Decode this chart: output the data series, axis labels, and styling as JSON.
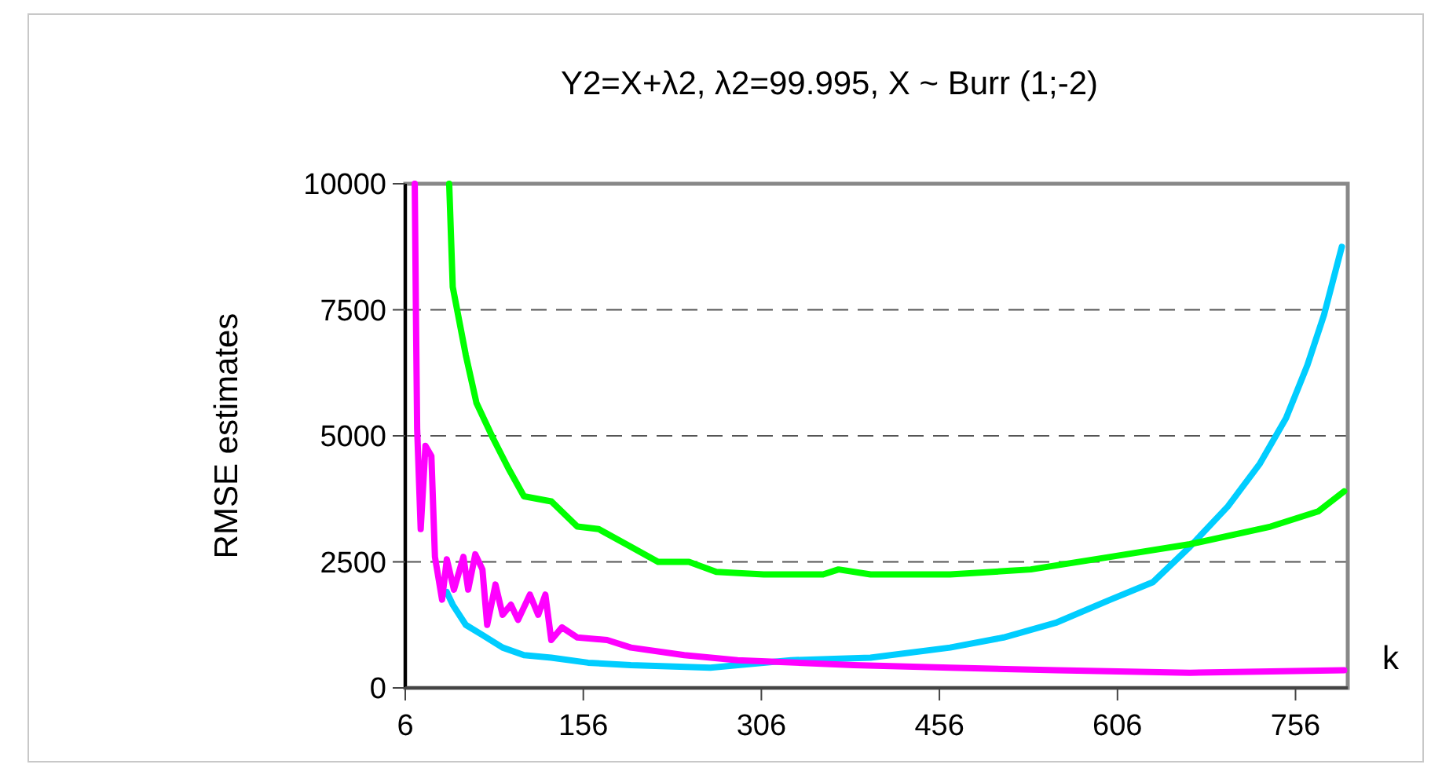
{
  "chart_data": {
    "type": "line",
    "title": "Y2=X+λ2,  λ2=99.995,  X ~ Burr (1;-2)",
    "xlabel": "k",
    "ylabel": "RMSE estimates",
    "xlim": [
      6,
      800
    ],
    "xticks": [
      6,
      156,
      306,
      456,
      606,
      756
    ],
    "ylim": [
      0,
      10000
    ],
    "yticks": [
      0,
      2500,
      5000,
      7500,
      10000
    ],
    "grid": "y",
    "line_style": "solid",
    "series": [
      {
        "color": "#00cdff",
        "x": [
          41,
          46,
          57,
          71,
          88,
          106,
          129,
          160,
          196,
          263,
          331,
          398,
          465,
          510,
          555,
          600,
          636,
          667,
          699,
          726,
          748,
          766,
          780,
          795
        ],
        "values": [
          1900,
          1650,
          1250,
          1050,
          800,
          650,
          600,
          500,
          450,
          400,
          550,
          600,
          800,
          1000,
          1300,
          1750,
          2100,
          2800,
          3600,
          4450,
          5350,
          6400,
          7400,
          8750
        ]
      },
      {
        "color": "#00ff00",
        "x": [
          43,
          46,
          57,
          66,
          80,
          93,
          106,
          129,
          151,
          169,
          196,
          219,
          245,
          268,
          308,
          358,
          371,
          398,
          465,
          533,
          600,
          667,
          735,
          775,
          797
        ],
        "values": [
          10000,
          7950,
          6600,
          5650,
          4950,
          4350,
          3800,
          3700,
          3200,
          3150,
          2800,
          2500,
          2500,
          2300,
          2250,
          2250,
          2350,
          2250,
          2250,
          2350,
          2600,
          2850,
          3200,
          3500,
          3900
        ]
      },
      {
        "color": "#ff00ff",
        "x": [
          14,
          15,
          16,
          19,
          23,
          28,
          31,
          37,
          41,
          47,
          55,
          59,
          65,
          71,
          75,
          82,
          88,
          95,
          101,
          111,
          118,
          124,
          129,
          138,
          151,
          176,
          196,
          241,
          286,
          384,
          465,
          555,
          667,
          797
        ],
        "values": [
          10000,
          7400,
          5150,
          3150,
          4800,
          4600,
          2600,
          1750,
          2550,
          1950,
          2600,
          1950,
          2650,
          2350,
          1250,
          2050,
          1450,
          1650,
          1350,
          1850,
          1450,
          1850,
          950,
          1200,
          1000,
          950,
          800,
          650,
          550,
          450,
          400,
          350,
          300,
          350
        ]
      }
    ]
  }
}
